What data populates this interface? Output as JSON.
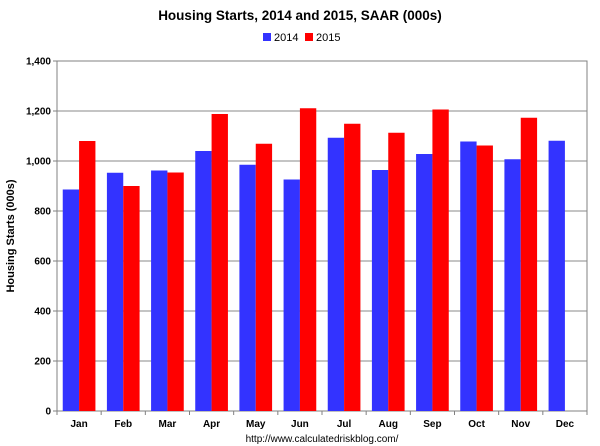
{
  "chart_data": {
    "type": "bar",
    "title": "Housing Starts,  2014 and 2015, SAAR (000s)",
    "ylabel": "Housing Starts (000s)",
    "xlabel": "",
    "ylim": [
      0,
      1400
    ],
    "yticks": [
      0,
      200,
      400,
      600,
      800,
      1000,
      1200,
      1400
    ],
    "ytick_labels": [
      "0",
      "200",
      "400",
      "600",
      "800",
      "1,000",
      "1,200",
      "1,400"
    ],
    "categories": [
      "Jan",
      "Feb",
      "Mar",
      "Apr",
      "May",
      "Jun",
      "Jul",
      "Aug",
      "Sep",
      "Oct",
      "Nov",
      "Dec"
    ],
    "series": [
      {
        "name": "2014",
        "color": "#3333ff",
        "values": [
          886,
          953,
          962,
          1040,
          985,
          926,
          1093,
          964,
          1028,
          1078,
          1007,
          1081
        ]
      },
      {
        "name": "2015",
        "color": "#ff0000",
        "values": [
          1080,
          900,
          954,
          1188,
          1069,
          1211,
          1149,
          1113,
          1206,
          1062,
          1173,
          null
        ]
      }
    ],
    "grid": true,
    "legend": "top-center",
    "source": "http://www.calculatedriskblog.com/"
  }
}
